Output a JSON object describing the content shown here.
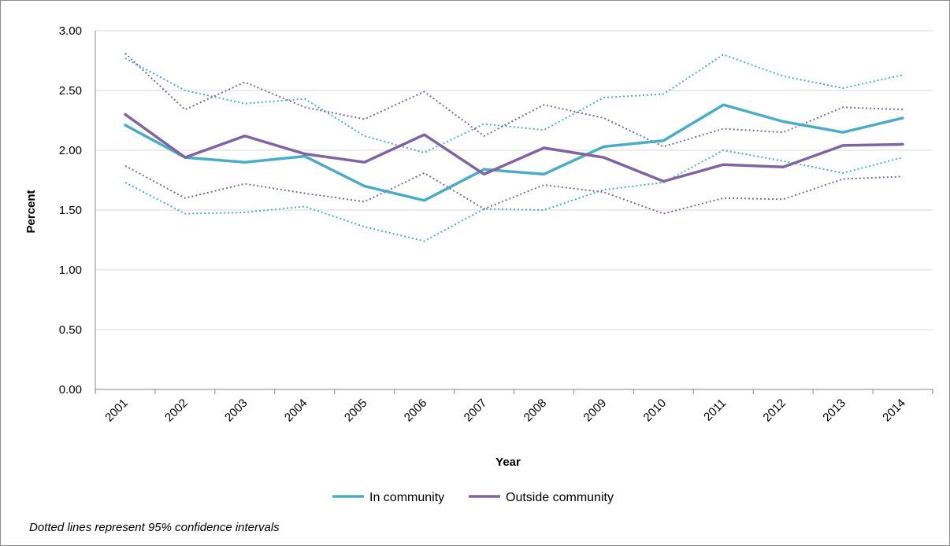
{
  "chart_data": {
    "type": "line",
    "xlabel": "Year",
    "ylabel": "Percent",
    "x": [
      "2001",
      "2002",
      "2003",
      "2004",
      "2005",
      "2006",
      "2007",
      "2008",
      "2009",
      "2010",
      "2011",
      "2012",
      "2013",
      "2014"
    ],
    "ylim": [
      0,
      3
    ],
    "yticks": [
      "0.00",
      "0.50",
      "1.00",
      "1.50",
      "2.00",
      "2.50",
      "3.00"
    ],
    "grid": true,
    "legend_position": "bottom",
    "series": [
      {
        "name": "In community",
        "style": "solid",
        "color": "#4bacc6",
        "values": [
          2.21,
          1.94,
          1.9,
          1.95,
          1.7,
          1.58,
          1.84,
          1.8,
          2.03,
          2.08,
          2.38,
          2.24,
          2.15,
          2.27
        ]
      },
      {
        "name": "Outside community",
        "style": "solid",
        "color": "#8064a2",
        "values": [
          2.3,
          1.94,
          2.12,
          1.97,
          1.9,
          2.13,
          1.8,
          2.02,
          1.94,
          1.74,
          1.88,
          1.86,
          2.04,
          2.05
        ]
      },
      {
        "role": "In community upper 95% CI",
        "style": "dotted",
        "color": "#4bacc6",
        "values": [
          2.77,
          2.5,
          2.39,
          2.43,
          2.12,
          1.98,
          2.22,
          2.17,
          2.44,
          2.47,
          2.8,
          2.62,
          2.52,
          2.63
        ]
      },
      {
        "role": "In community lower 95% CI",
        "style": "dotted",
        "color": "#4bacc6",
        "values": [
          1.73,
          1.47,
          1.48,
          1.53,
          1.36,
          1.24,
          1.51,
          1.5,
          1.67,
          1.73,
          2.0,
          1.91,
          1.81,
          1.94
        ]
      },
      {
        "role": "Outside community upper 95% CI",
        "style": "dotted",
        "color": "#8064a2",
        "values": [
          2.81,
          2.34,
          2.57,
          2.36,
          2.26,
          2.49,
          2.12,
          2.38,
          2.27,
          2.03,
          2.18,
          2.15,
          2.36,
          2.34
        ]
      },
      {
        "role": "Outside community lower 95% CI",
        "style": "dotted",
        "color": "#8064a2",
        "values": [
          1.87,
          1.6,
          1.72,
          1.64,
          1.57,
          1.81,
          1.51,
          1.71,
          1.65,
          1.47,
          1.6,
          1.59,
          1.76,
          1.78
        ]
      }
    ],
    "footnote": "Dotted lines represent 95% confidence intervals"
  }
}
